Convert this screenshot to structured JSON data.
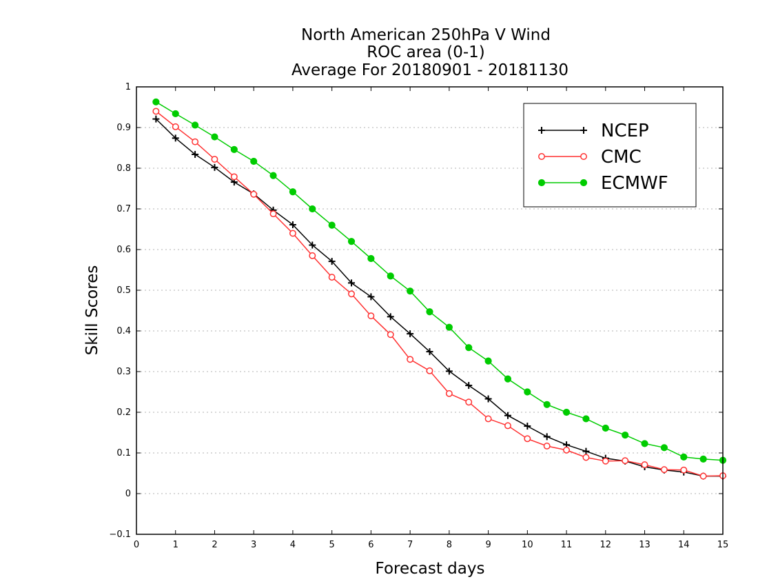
{
  "chart_data": {
    "type": "line",
    "title": [
      "North American 250hPa V Wind",
      "ROC area (0-1)",
      "Average For 20180901 - 20181130"
    ],
    "xlabel": "Forecast days",
    "ylabel": "Skill Scores",
    "xlim": [
      0,
      15
    ],
    "ylim": [
      -0.1,
      1
    ],
    "xticks": [
      "0",
      "1",
      "2",
      "3",
      "4",
      "5",
      "6",
      "7",
      "8",
      "9",
      "10",
      "11",
      "12",
      "13",
      "14",
      "15"
    ],
    "yticks": [
      "−0.1",
      "0",
      "0.1",
      "0.2",
      "0.3",
      "0.4",
      "0.5",
      "0.6",
      "0.7",
      "0.8",
      "0.9",
      "1"
    ],
    "grid": "horizontal dotted",
    "legend_position": "top-right",
    "x": [
      0.5,
      1,
      1.5,
      2,
      2.5,
      3,
      3.5,
      4,
      4.5,
      5,
      5.5,
      6,
      6.5,
      7,
      7.5,
      8,
      8.5,
      9,
      9.5,
      10,
      10.5,
      11,
      11.5,
      12,
      12.5,
      13,
      13.5,
      14,
      14.5,
      15
    ],
    "series": [
      {
        "name": "NCEP",
        "color": "#000000",
        "marker": "plus",
        "values": [
          0.921,
          0.874,
          0.834,
          0.802,
          0.766,
          0.737,
          0.697,
          0.661,
          0.611,
          0.571,
          0.518,
          0.484,
          0.435,
          0.393,
          0.349,
          0.301,
          0.266,
          0.233,
          0.192,
          0.166,
          0.14,
          0.12,
          0.104,
          0.087,
          0.08,
          0.066,
          0.058,
          0.053,
          0.043,
          0.043
        ]
      },
      {
        "name": "CMC",
        "color": "#ff3030",
        "marker": "open-circle",
        "values": [
          0.94,
          0.902,
          0.865,
          0.822,
          0.779,
          0.736,
          0.688,
          0.64,
          0.585,
          0.532,
          0.491,
          0.437,
          0.391,
          0.33,
          0.302,
          0.246,
          0.225,
          0.184,
          0.167,
          0.135,
          0.117,
          0.107,
          0.089,
          0.08,
          0.081,
          0.071,
          0.059,
          0.058,
          0.043,
          0.044
        ]
      },
      {
        "name": "ECMWF",
        "color": "#00cc00",
        "marker": "filled-circle",
        "values": [
          0.963,
          0.934,
          0.906,
          0.877,
          0.846,
          0.817,
          0.782,
          0.742,
          0.7,
          0.66,
          0.62,
          0.578,
          0.535,
          0.498,
          0.447,
          0.409,
          0.359,
          0.326,
          0.282,
          0.25,
          0.219,
          0.2,
          0.184,
          0.161,
          0.144,
          0.123,
          0.113,
          0.09,
          0.085,
          0.082
        ]
      }
    ]
  }
}
